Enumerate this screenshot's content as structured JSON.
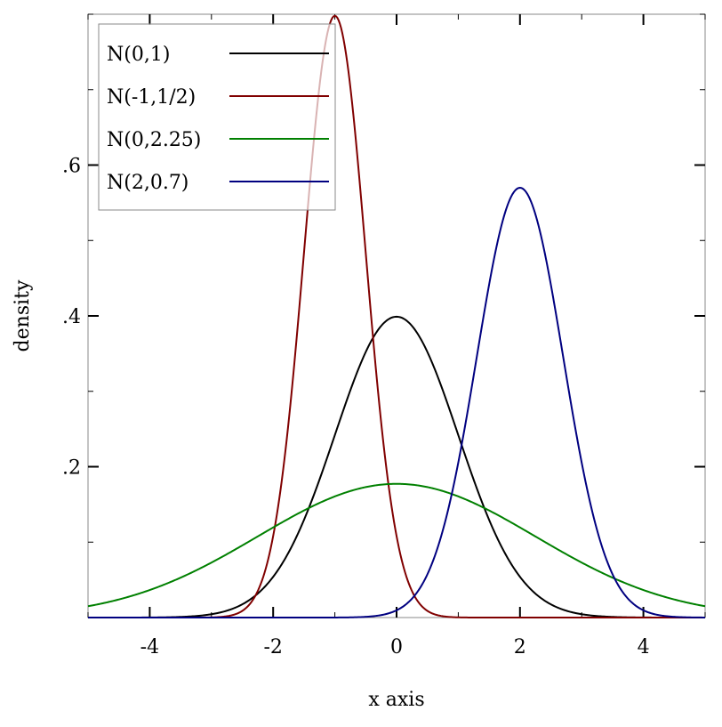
{
  "chart_data": {
    "type": "line",
    "xlabel": "x axis",
    "ylabel": "density",
    "xlim": [
      -5,
      5
    ],
    "ylim": [
      0,
      0.8
    ],
    "x_ticks": [
      -4,
      -2,
      0,
      2,
      4
    ],
    "x_tick_labels": [
      "-4",
      "-2",
      "0",
      "2",
      "4"
    ],
    "y_ticks": [
      0.2,
      0.4,
      0.6
    ],
    "y_tick_labels": [
      ".2",
      ".4",
      ".6"
    ],
    "grid": false,
    "legend_position": "top-left",
    "series": [
      {
        "name": "N(0,1)",
        "mean": 0,
        "stddev": 1,
        "color": "#000000"
      },
      {
        "name": "N(-1,1/2)",
        "mean": -1,
        "stddev": 0.5,
        "color": "#800000"
      },
      {
        "name": "N(0,2.25)",
        "mean": 0,
        "stddev": 2.25,
        "color": "#008000"
      },
      {
        "name": "N(2,0.7)",
        "mean": 2,
        "stddev": 0.7,
        "color": "#000080"
      }
    ]
  }
}
